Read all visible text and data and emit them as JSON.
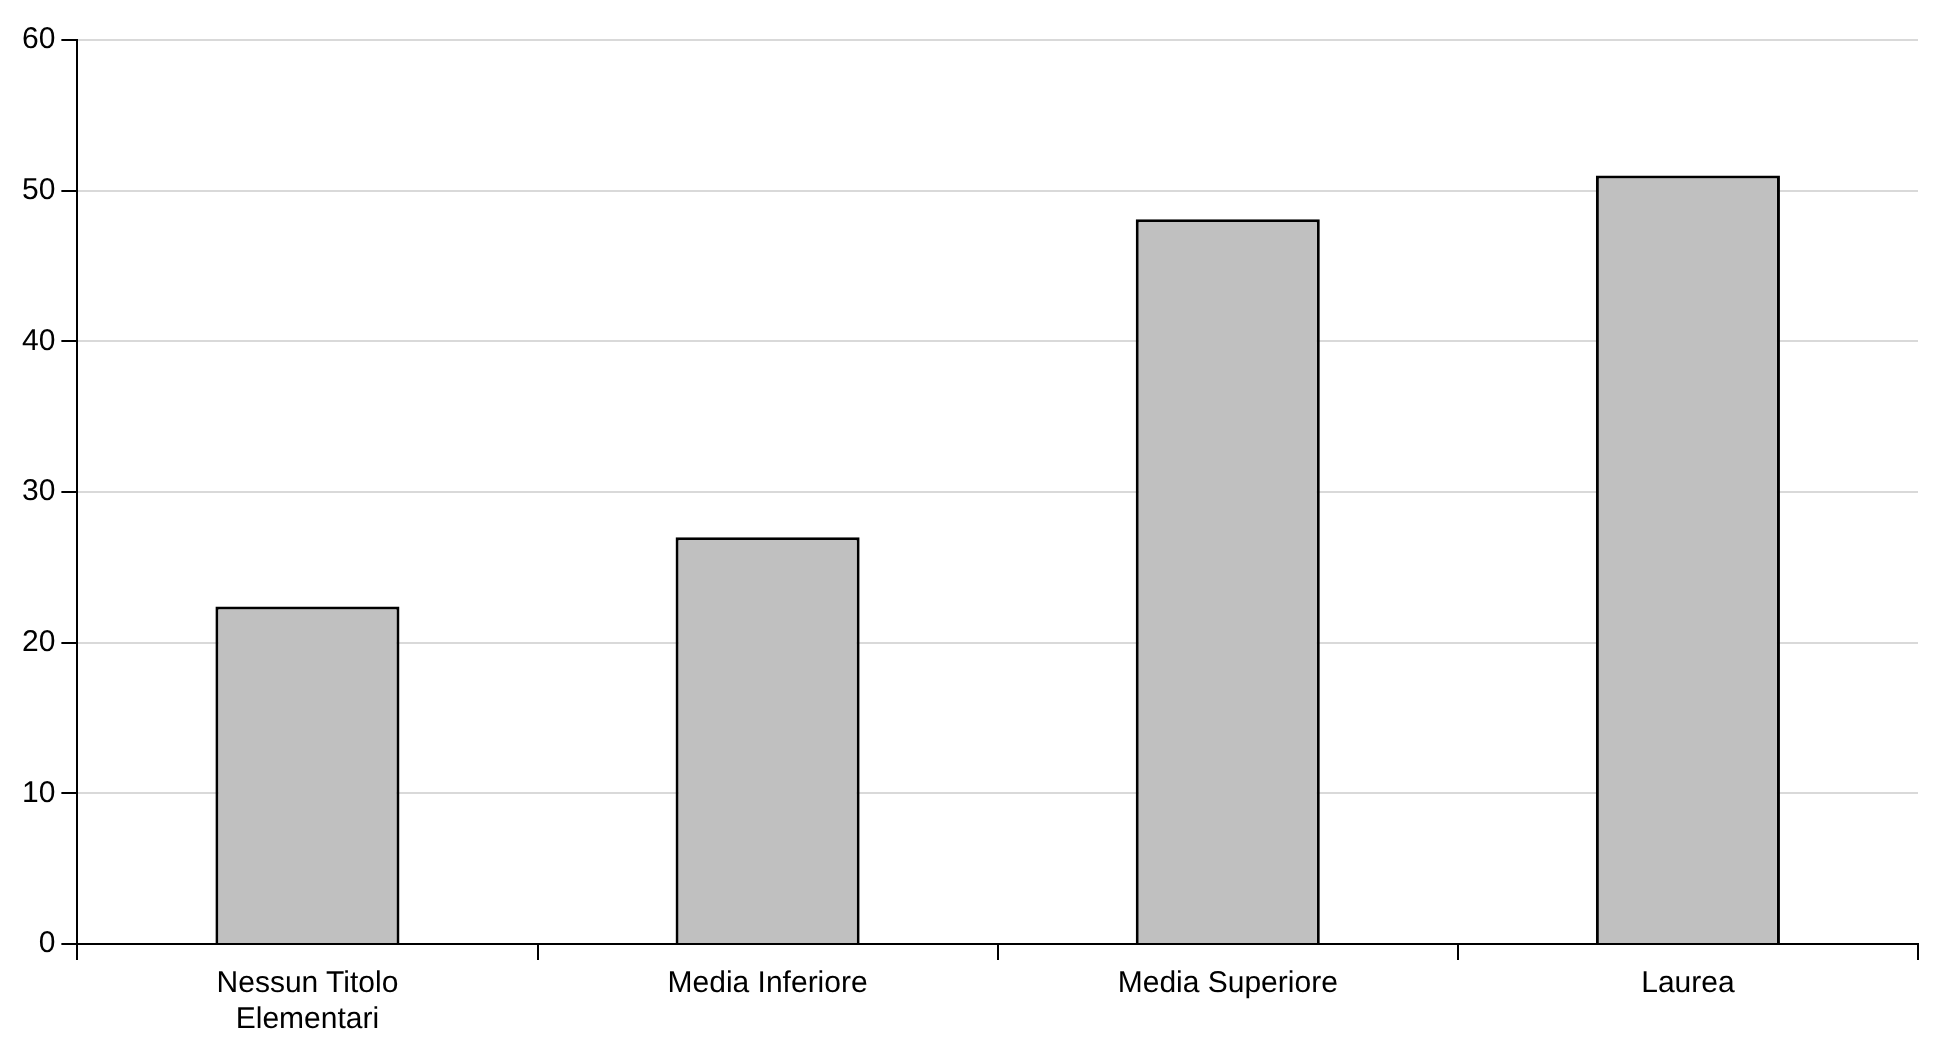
{
  "chart_data": {
    "type": "bar",
    "categories": [
      "Nessun Titolo\nElementari",
      "Media Inferiore",
      "Media Superiore",
      "Laurea"
    ],
    "values": [
      22.4,
      27,
      48.1,
      51
    ],
    "color": "#c0c0c0",
    "ylim": [
      0,
      60
    ],
    "yticks": [
      0,
      10,
      20,
      30,
      40,
      50,
      60
    ],
    "grid": "y"
  }
}
